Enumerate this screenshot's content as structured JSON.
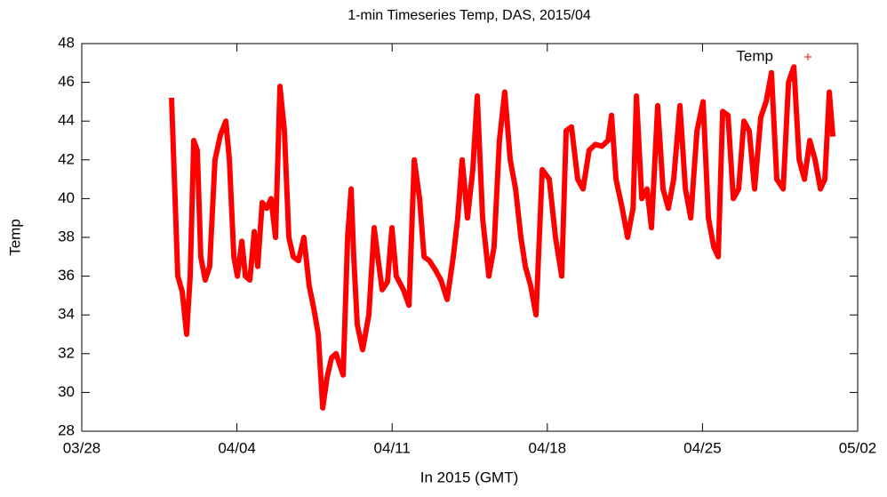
{
  "chart_data": {
    "type": "line",
    "title": "1-min Timeseries Temp, DAS, 2015/04",
    "x_label": "In 2015 (GMT)",
    "y_label": "Temp",
    "xlim": [
      0,
      35
    ],
    "xticks": [
      {
        "value": 0,
        "label": "03/28"
      },
      {
        "value": 7,
        "label": "04/04"
      },
      {
        "value": 14,
        "label": "04/11"
      },
      {
        "value": 21,
        "label": "04/18"
      },
      {
        "value": 28,
        "label": "04/25"
      },
      {
        "value": 35,
        "label": "05/02"
      }
    ],
    "ylim": [
      28,
      48
    ],
    "yticks": [
      28,
      30,
      32,
      34,
      36,
      38,
      40,
      42,
      44,
      46,
      48
    ],
    "legend": "top-right",
    "series": [
      {
        "name": "Temp",
        "color": "#ff0000",
        "x": [
          4.05,
          4.21,
          4.33,
          4.53,
          4.73,
          4.89,
          5.05,
          5.21,
          5.37,
          5.57,
          5.77,
          6.01,
          6.26,
          6.5,
          6.66,
          6.86,
          7.02,
          7.22,
          7.38,
          7.58,
          7.78,
          7.94,
          8.14,
          8.34,
          8.54,
          8.74,
          8.94,
          9.14,
          9.34,
          9.54,
          9.78,
          10.02,
          10.26,
          10.47,
          10.67,
          10.87,
          11.07,
          11.27,
          11.47,
          11.79,
          11.99,
          12.15,
          12.27,
          12.43,
          12.67,
          12.95,
          13.19,
          13.35,
          13.55,
          13.79,
          13.99,
          14.19,
          14.51,
          14.76,
          15.0,
          15.24,
          15.44,
          15.68,
          15.96,
          16.2,
          16.48,
          16.76,
          16.96,
          17.16,
          17.4,
          17.64,
          17.84,
          18.08,
          18.36,
          18.6,
          18.84,
          19.08,
          19.33,
          19.57,
          19.81,
          20.01,
          20.25,
          20.49,
          20.77,
          21.09,
          21.37,
          21.65,
          21.85,
          22.09,
          22.37,
          22.61,
          22.89,
          23.17,
          23.46,
          23.74,
          23.9,
          24.1,
          24.38,
          24.62,
          24.87,
          25.02,
          25.26,
          25.5,
          25.7,
          25.98,
          26.22,
          26.46,
          26.7,
          26.98,
          27.23,
          27.47,
          27.75,
          28.03,
          28.27,
          28.51,
          28.71,
          28.91,
          29.15,
          29.39,
          29.63,
          29.87,
          30.11,
          30.35,
          30.63,
          30.87,
          31.11,
          31.35,
          31.64,
          31.88,
          32.12,
          32.36,
          32.6,
          32.84,
          33.08,
          33.32,
          33.52,
          33.72,
          33.88
        ],
        "values": [
          45.2,
          40,
          36,
          35.2,
          33,
          36,
          43,
          42.5,
          37,
          35.8,
          36.5,
          42,
          43.3,
          44,
          42,
          37,
          36,
          37.8,
          36,
          35.8,
          38.3,
          36.5,
          39.8,
          39.5,
          40,
          38,
          45.8,
          43.5,
          38,
          37,
          36.8,
          38,
          35.5,
          34.3,
          33,
          29.2,
          30.8,
          31.8,
          32,
          30.9,
          38,
          40.5,
          37,
          33.5,
          32.2,
          34,
          38.5,
          37,
          35.3,
          35.7,
          38.5,
          36,
          35.3,
          34.5,
          42,
          40,
          37,
          36.8,
          36.3,
          35.8,
          34.8,
          37,
          39,
          42,
          39,
          41.5,
          45.3,
          39,
          36,
          37.5,
          43,
          45.5,
          42,
          40.5,
          38,
          36.5,
          35.5,
          34,
          41.5,
          41,
          38,
          36,
          43.5,
          43.7,
          41,
          40.5,
          42.5,
          42.8,
          42.7,
          43,
          44.3,
          41,
          39.5,
          38,
          39.5,
          45.3,
          40,
          40.5,
          38.5,
          44.8,
          40.5,
          39.5,
          41,
          44.8,
          40.5,
          39,
          43.5,
          45,
          39,
          37.5,
          37,
          44.5,
          44.3,
          40,
          40.5,
          44,
          43.5,
          40.5,
          44.2,
          45,
          46.5,
          41,
          40.5,
          46,
          46.8,
          42,
          41,
          43,
          42,
          40.5,
          41,
          45.5,
          43.2
        ]
      }
    ]
  }
}
